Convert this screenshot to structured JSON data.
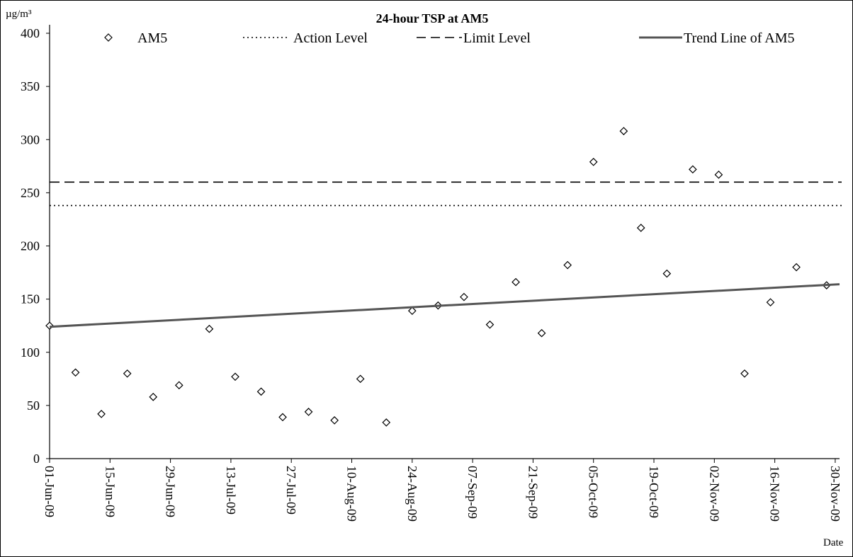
{
  "chart_data": {
    "type": "scatter",
    "title": "24-hour TSP at AM5",
    "ylabel": "µg/m³",
    "xlabel": "Date",
    "ylim": [
      0,
      400
    ],
    "yticks": [
      "0",
      "50",
      "100",
      "150",
      "200",
      "250",
      "300",
      "350",
      "400"
    ],
    "xlim": [
      "2009-06-01",
      "2009-12-01"
    ],
    "xticks": [
      {
        "date": "2009-06-01",
        "label": "01-Jun-09"
      },
      {
        "date": "2009-06-15",
        "label": "15-Jun-09"
      },
      {
        "date": "2009-06-29",
        "label": "29-Jun-09"
      },
      {
        "date": "2009-07-13",
        "label": "13-Jul-09"
      },
      {
        "date": "2009-07-27",
        "label": "27-Jul-09"
      },
      {
        "date": "2009-08-10",
        "label": "10-Aug-09"
      },
      {
        "date": "2009-08-24",
        "label": "24-Aug-09"
      },
      {
        "date": "2009-09-07",
        "label": "07-Sep-09"
      },
      {
        "date": "2009-09-21",
        "label": "21-Sep-09"
      },
      {
        "date": "2009-10-05",
        "label": "05-Oct-09"
      },
      {
        "date": "2009-10-19",
        "label": "19-Oct-09"
      },
      {
        "date": "2009-11-02",
        "label": "02-Nov-09"
      },
      {
        "date": "2009-11-16",
        "label": "16-Nov-09"
      },
      {
        "date": "2009-11-30",
        "label": "30-Nov-09"
      }
    ],
    "legend_position": "top",
    "series": [
      {
        "name": "AM5",
        "kind": "points",
        "marker": "diamond",
        "points": [
          {
            "x": "2009-06-01",
            "y": 125
          },
          {
            "x": "2009-06-07",
            "y": 81
          },
          {
            "x": "2009-06-13",
            "y": 42
          },
          {
            "x": "2009-06-19",
            "y": 80
          },
          {
            "x": "2009-06-25",
            "y": 58
          },
          {
            "x": "2009-07-01",
            "y": 69
          },
          {
            "x": "2009-07-08",
            "y": 122
          },
          {
            "x": "2009-07-14",
            "y": 77
          },
          {
            "x": "2009-07-20",
            "y": 63
          },
          {
            "x": "2009-07-25",
            "y": 39
          },
          {
            "x": "2009-07-31",
            "y": 44
          },
          {
            "x": "2009-08-06",
            "y": 36
          },
          {
            "x": "2009-08-12",
            "y": 75
          },
          {
            "x": "2009-08-18",
            "y": 34
          },
          {
            "x": "2009-08-24",
            "y": 139
          },
          {
            "x": "2009-08-30",
            "y": 144
          },
          {
            "x": "2009-09-05",
            "y": 152
          },
          {
            "x": "2009-09-11",
            "y": 126
          },
          {
            "x": "2009-09-17",
            "y": 166
          },
          {
            "x": "2009-09-23",
            "y": 118
          },
          {
            "x": "2009-09-29",
            "y": 182
          },
          {
            "x": "2009-10-05",
            "y": 279
          },
          {
            "x": "2009-10-12",
            "y": 308
          },
          {
            "x": "2009-10-16",
            "y": 217
          },
          {
            "x": "2009-10-22",
            "y": 174
          },
          {
            "x": "2009-10-28",
            "y": 272
          },
          {
            "x": "2009-11-03",
            "y": 267
          },
          {
            "x": "2009-11-09",
            "y": 80
          },
          {
            "x": "2009-11-15",
            "y": 147
          },
          {
            "x": "2009-11-21",
            "y": 180
          },
          {
            "x": "2009-11-28",
            "y": 163
          }
        ]
      },
      {
        "name": "Action Level",
        "kind": "hline",
        "y": 238,
        "dash": "dotted"
      },
      {
        "name": "Limit Level",
        "kind": "hline",
        "y": 260,
        "dash": "dashed"
      },
      {
        "name": "Trend Line of AM5",
        "kind": "line",
        "points": [
          {
            "x": "2009-06-01",
            "y": 124
          },
          {
            "x": "2009-12-01",
            "y": 164
          }
        ]
      }
    ]
  }
}
